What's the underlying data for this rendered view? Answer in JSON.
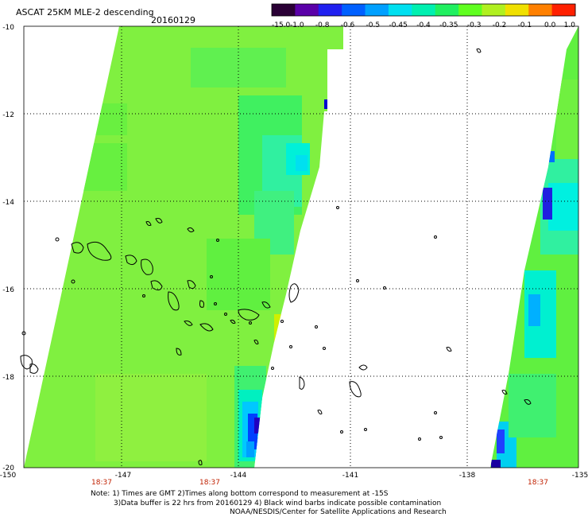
{
  "header": {
    "title": "ASCAT 25KM MLE-2 descending",
    "date": "20160129"
  },
  "colorbar": {
    "labels": [
      "-15.0",
      "-1.0",
      "-0.8",
      "-0.6",
      "-0.5",
      "-0.45",
      "-0.4",
      "-0.35",
      "-0.3",
      "-0.2",
      "-0.1",
      "0.0",
      "1.0"
    ],
    "colors": [
      "#2a0035",
      "#5a00a8",
      "#2020f0",
      "#0060ff",
      "#00a0ff",
      "#00e0f0",
      "#00f0b0",
      "#20f060",
      "#60ff20",
      "#b0f020",
      "#f0e000",
      "#ff8000",
      "#ff2000"
    ]
  },
  "axes": {
    "lat_labels": [
      "-10",
      "-12",
      "-14",
      "-16",
      "-18",
      "-20"
    ],
    "lon_labels": [
      "-150",
      "-147",
      "-144",
      "-141",
      "-138",
      "-135"
    ]
  },
  "times": [
    "18:37",
    "18:37",
    "18:37"
  ],
  "notes": {
    "line1": "Note: 1) Times are GMT 2)Times along bottom correspond to measurement at -15S",
    "line2": "3)Data buffer is 22 hrs from 20160129 4) Black wind barbs indicate possible contamination",
    "line3": "NOAA/NESDIS/Center for Satellite Applications and Research"
  },
  "palette": {
    "lime": "#80f040",
    "green": "#40f040",
    "cyan": "#00e8e8",
    "blue": "#0040ff",
    "navy": "#2000c0",
    "time_red": "#c02000"
  }
}
